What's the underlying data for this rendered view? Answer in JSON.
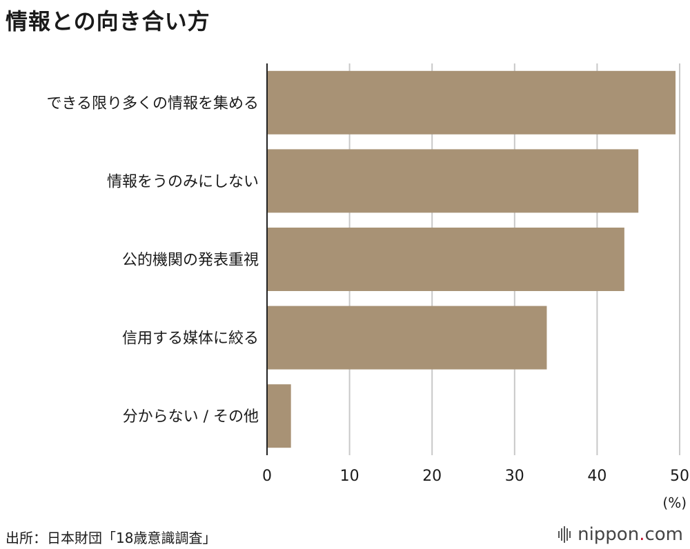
{
  "title": "情報との向き合い方",
  "source": "出所：日本財団「18歳意識調査」",
  "brand": {
    "name_left": "nippon",
    "dot": ".",
    "name_right": "com",
    "icon": "sound-bars-icon"
  },
  "colors": {
    "bar": "#a89275",
    "grid": "#c8c8c8",
    "axis": "#222222",
    "brand_dot": "#c8102e"
  },
  "chart_data": {
    "type": "bar",
    "orientation": "horizontal",
    "categories": [
      "できる限り多くの情報を集める",
      "情報をうのみにしない",
      "公的機関の発表重視",
      "信用する媒体に絞る",
      "分からない / その他"
    ],
    "values": [
      49.5,
      45,
      43.3,
      33.9,
      2.9
    ],
    "xlim": [
      0,
      50
    ],
    "xticks": [
      0,
      10,
      20,
      30,
      40,
      50
    ],
    "unit": "(%)",
    "grid": true
  }
}
